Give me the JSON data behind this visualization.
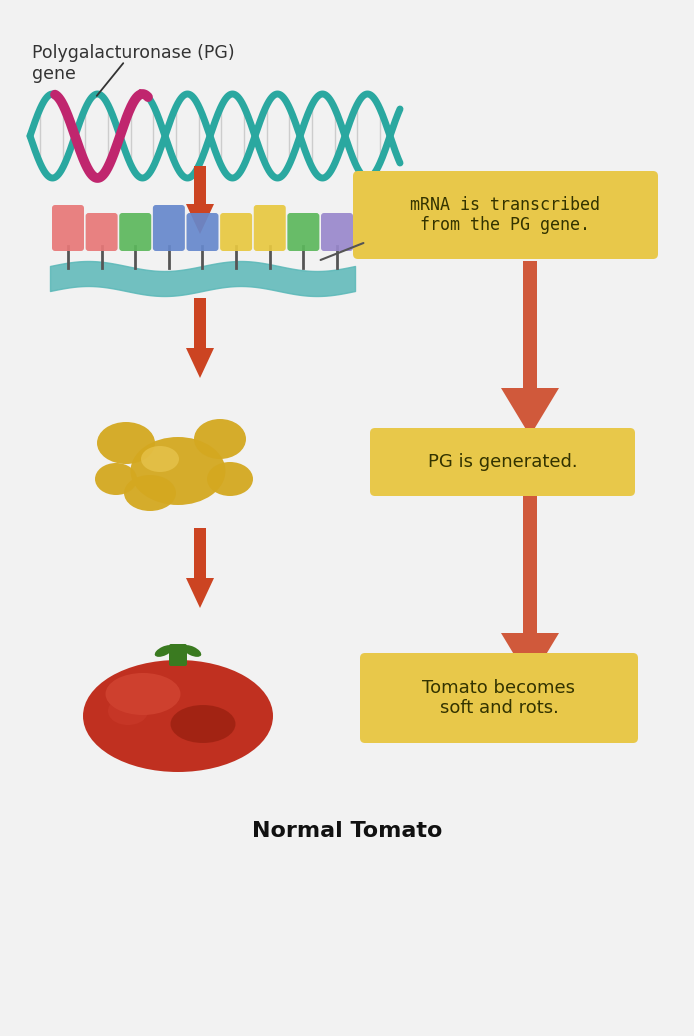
{
  "bg_color": "#f0f0f0",
  "title": "Normal Tomato",
  "label_pg_gene": "Polygalacturonase (PG)\ngene",
  "label_mrna": "mRNA is transcribed\nfrom the PG gene.",
  "label_pg_gen": "PG is generated.",
  "label_tomato": "Tomato becomes\nsoft and rots.",
  "dna_color1": "#2aa8a0",
  "dna_color2": "#c0266e",
  "mrna_box_color": "#e8c84a",
  "arrow_color_left": "#cc4422",
  "arrow_color_right": "#cc4422",
  "codon_colors": [
    "#e87878",
    "#e87878",
    "#5cb85c",
    "#6688cc",
    "#6688cc",
    "#e8c840",
    "#e8c840",
    "#5cb85c",
    "#9988cc"
  ],
  "strand_color": "#5ab8b8"
}
